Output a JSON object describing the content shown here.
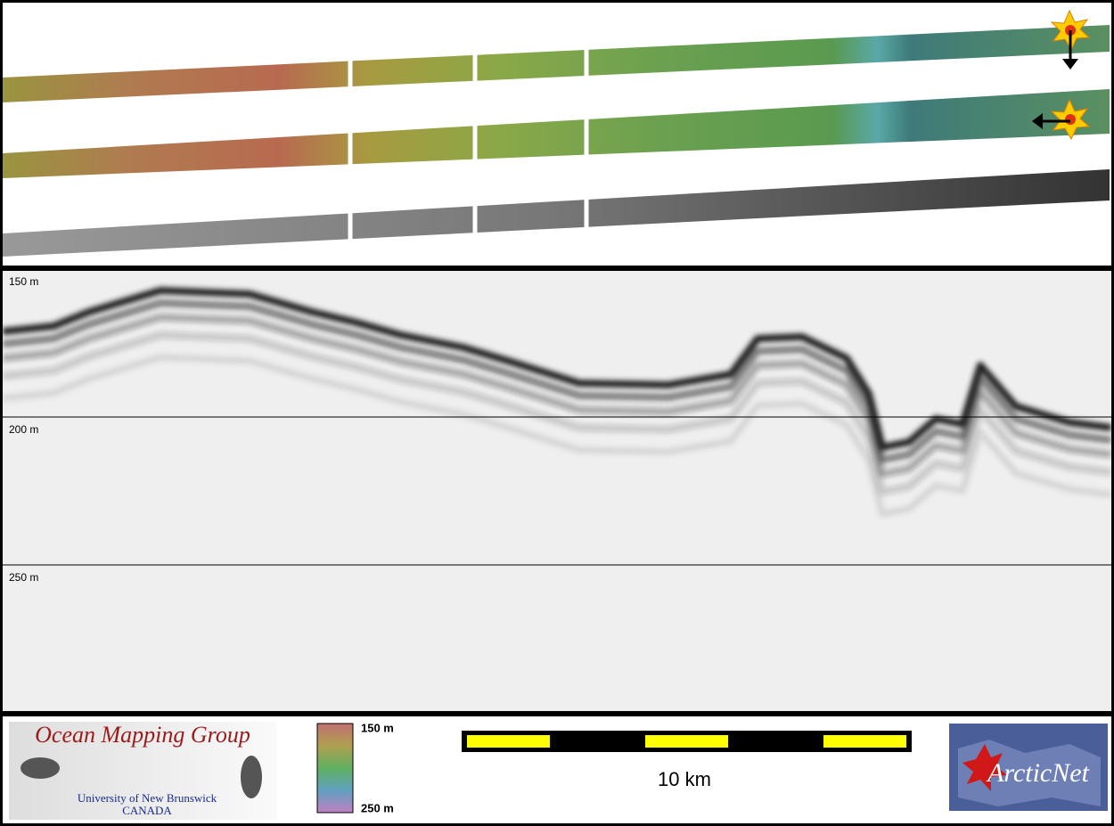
{
  "profile": {
    "depth_labels": [
      "150 m",
      "200 m",
      "250 m"
    ]
  },
  "footer": {
    "logo": {
      "title": "Ocean Mapping Group",
      "subtitle": "University of New Brunswick",
      "country": "CANADA"
    },
    "colorbar": {
      "top": "150 m",
      "bottom": "250 m"
    },
    "scale_bar": {
      "label": "10 km"
    },
    "partner": {
      "name": "ArcticNet"
    }
  }
}
